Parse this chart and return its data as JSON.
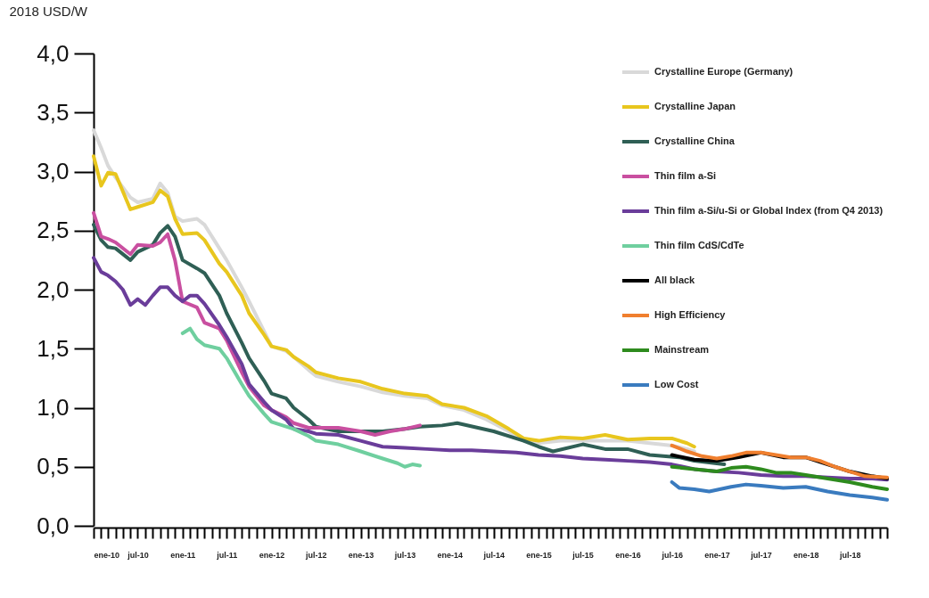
{
  "chart_data": {
    "type": "line",
    "ylabel": "2018 USD/W",
    "legend": "top right",
    "grid": false,
    "marker": "none",
    "line_style": "solid",
    "xlim": [
      "2010-01",
      "2018-12"
    ],
    "ylim": [
      0,
      4
    ],
    "yticks": [
      {
        "value": 0,
        "label": "0,0"
      },
      {
        "value": 0.5,
        "label": "0,5"
      },
      {
        "value": 1,
        "label": "1,0"
      },
      {
        "value": 1.5,
        "label": "1,5"
      },
      {
        "value": 2,
        "label": "2,0"
      },
      {
        "value": 2.5,
        "label": "2,5"
      },
      {
        "value": 3,
        "label": "3,0"
      },
      {
        "value": 3.5,
        "label": "3,5"
      },
      {
        "value": 4,
        "label": "4,0"
      }
    ],
    "xticks": [
      {
        "value": "2010-01",
        "label": "ene-10"
      },
      {
        "value": "2010-02",
        "label": null
      },
      {
        "value": "2010-03",
        "label": null
      },
      {
        "value": "2010-04",
        "label": null
      },
      {
        "value": "2010-05",
        "label": null
      },
      {
        "value": "2010-06",
        "label": null
      },
      {
        "value": "2010-07",
        "label": "jul-10"
      },
      {
        "value": "2010-08",
        "label": null
      },
      {
        "value": "2010-09",
        "label": null
      },
      {
        "value": "2010-10",
        "label": null
      },
      {
        "value": "2010-11",
        "label": null
      },
      {
        "value": "2010-12",
        "label": null
      },
      {
        "value": "2011-01",
        "label": "ene-11"
      },
      {
        "value": "2011-02",
        "label": null
      },
      {
        "value": "2011-03",
        "label": null
      },
      {
        "value": "2011-04",
        "label": null
      },
      {
        "value": "2011-05",
        "label": null
      },
      {
        "value": "2011-06",
        "label": null
      },
      {
        "value": "2011-07",
        "label": "jul-11"
      },
      {
        "value": "2011-08",
        "label": null
      },
      {
        "value": "2011-09",
        "label": null
      },
      {
        "value": "2011-10",
        "label": null
      },
      {
        "value": "2011-11",
        "label": null
      },
      {
        "value": "2011-12",
        "label": null
      },
      {
        "value": "2012-01",
        "label": "ene-12"
      },
      {
        "value": "2012-02",
        "label": null
      },
      {
        "value": "2012-03",
        "label": null
      },
      {
        "value": "2012-04",
        "label": null
      },
      {
        "value": "2012-05",
        "label": null
      },
      {
        "value": "2012-06",
        "label": null
      },
      {
        "value": "2012-07",
        "label": "jul-12"
      },
      {
        "value": "2012-08",
        "label": null
      },
      {
        "value": "2012-09",
        "label": null
      },
      {
        "value": "2012-10",
        "label": null
      },
      {
        "value": "2012-11",
        "label": null
      },
      {
        "value": "2012-12",
        "label": null
      },
      {
        "value": "2013-01",
        "label": "ene-13"
      },
      {
        "value": "2013-02",
        "label": null
      },
      {
        "value": "2013-03",
        "label": null
      },
      {
        "value": "2013-04",
        "label": null
      },
      {
        "value": "2013-05",
        "label": null
      },
      {
        "value": "2013-06",
        "label": null
      },
      {
        "value": "2013-07",
        "label": "jul-13"
      },
      {
        "value": "2013-08",
        "label": null
      },
      {
        "value": "2013-09",
        "label": null
      },
      {
        "value": "2013-10",
        "label": null
      },
      {
        "value": "2013-11",
        "label": null
      },
      {
        "value": "2013-12",
        "label": null
      },
      {
        "value": "2014-01",
        "label": "ene-14"
      },
      {
        "value": "2014-02",
        "label": null
      },
      {
        "value": "2014-03",
        "label": null
      },
      {
        "value": "2014-04",
        "label": null
      },
      {
        "value": "2014-05",
        "label": null
      },
      {
        "value": "2014-06",
        "label": null
      },
      {
        "value": "2014-07",
        "label": "jul-14"
      },
      {
        "value": "2014-08",
        "label": null
      },
      {
        "value": "2014-09",
        "label": null
      },
      {
        "value": "2014-10",
        "label": null
      },
      {
        "value": "2014-11",
        "label": null
      },
      {
        "value": "2014-12",
        "label": null
      },
      {
        "value": "2015-01",
        "label": "ene-15"
      },
      {
        "value": "2015-02",
        "label": null
      },
      {
        "value": "2015-03",
        "label": null
      },
      {
        "value": "2015-04",
        "label": null
      },
      {
        "value": "2015-05",
        "label": null
      },
      {
        "value": "2015-06",
        "label": null
      },
      {
        "value": "2015-07",
        "label": "jul-15"
      },
      {
        "value": "2015-08",
        "label": null
      },
      {
        "value": "2015-09",
        "label": null
      },
      {
        "value": "2015-10",
        "label": null
      },
      {
        "value": "2015-11",
        "label": null
      },
      {
        "value": "2015-12",
        "label": null
      },
      {
        "value": "2016-01",
        "label": "ene-16"
      },
      {
        "value": "2016-02",
        "label": null
      },
      {
        "value": "2016-03",
        "label": null
      },
      {
        "value": "2016-04",
        "label": null
      },
      {
        "value": "2016-05",
        "label": null
      },
      {
        "value": "2016-06",
        "label": null
      },
      {
        "value": "2016-07",
        "label": "jul-16"
      },
      {
        "value": "2016-08",
        "label": null
      },
      {
        "value": "2016-09",
        "label": null
      },
      {
        "value": "2016-10",
        "label": null
      },
      {
        "value": "2016-11",
        "label": null
      },
      {
        "value": "2016-12",
        "label": null
      },
      {
        "value": "2017-01",
        "label": "ene-17"
      },
      {
        "value": "2017-02",
        "label": null
      },
      {
        "value": "2017-03",
        "label": null
      },
      {
        "value": "2017-04",
        "label": null
      },
      {
        "value": "2017-05",
        "label": null
      },
      {
        "value": "2017-06",
        "label": null
      },
      {
        "value": "2017-07",
        "label": "jul-17"
      },
      {
        "value": "2017-08",
        "label": null
      },
      {
        "value": "2017-09",
        "label": null
      },
      {
        "value": "2017-10",
        "label": null
      },
      {
        "value": "2017-11",
        "label": null
      },
      {
        "value": "2017-12",
        "label": null
      },
      {
        "value": "2018-01",
        "label": "ene-18"
      },
      {
        "value": "2018-02",
        "label": null
      },
      {
        "value": "2018-03",
        "label": null
      },
      {
        "value": "2018-04",
        "label": null
      },
      {
        "value": "2018-05",
        "label": null
      },
      {
        "value": "2018-06",
        "label": null
      },
      {
        "value": "2018-07",
        "label": "jul-18"
      },
      {
        "value": "2018-08",
        "label": null
      },
      {
        "value": "2018-09",
        "label": null
      },
      {
        "value": "2018-10",
        "label": null
      },
      {
        "value": "2018-11",
        "label": null
      },
      {
        "value": "2018-12",
        "label": null
      }
    ],
    "series": [
      {
        "name": "Crystalline Europe (Germany)",
        "color": "#d9d9d9",
        "x": [
          "2010-01",
          "2010-02",
          "2010-03",
          "2010-04",
          "2010-06",
          "2010-07",
          "2010-09",
          "2010-10",
          "2010-11",
          "2010-12",
          "2011-01",
          "2011-03",
          "2011-04",
          "2011-06",
          "2011-07",
          "2011-09",
          "2011-10",
          "2011-12",
          "2012-01",
          "2012-03",
          "2012-04",
          "2012-06",
          "2012-07",
          "2012-10",
          "2013-01",
          "2013-04",
          "2013-07",
          "2013-10",
          "2013-12",
          "2014-03",
          "2014-06",
          "2014-09",
          "2014-11",
          "2015-01",
          "2015-04",
          "2015-07",
          "2015-10",
          "2016-01",
          "2016-04",
          "2016-07",
          "2016-09",
          "2016-10"
        ],
        "values": [
          3.35,
          3.2,
          3.05,
          2.95,
          2.78,
          2.74,
          2.77,
          2.9,
          2.82,
          2.62,
          2.58,
          2.6,
          2.55,
          2.35,
          2.25,
          2.02,
          1.9,
          1.65,
          1.52,
          1.48,
          1.43,
          1.32,
          1.27,
          1.22,
          1.18,
          1.13,
          1.1,
          1.08,
          1.02,
          0.98,
          0.9,
          0.8,
          0.72,
          0.7,
          0.72,
          0.72,
          0.72,
          0.72,
          0.7,
          0.68,
          0.65,
          0.63
        ]
      },
      {
        "name": "Crystalline Japan",
        "color": "#e8c61e",
        "x": [
          "2010-01",
          "2010-02",
          "2010-03",
          "2010-04",
          "2010-06",
          "2010-07",
          "2010-09",
          "2010-10",
          "2010-11",
          "2010-12",
          "2011-01",
          "2011-03",
          "2011-04",
          "2011-06",
          "2011-07",
          "2011-09",
          "2011-10",
          "2011-12",
          "2012-01",
          "2012-03",
          "2012-04",
          "2012-06",
          "2012-07",
          "2012-10",
          "2013-01",
          "2013-04",
          "2013-07",
          "2013-10",
          "2013-12",
          "2014-03",
          "2014-06",
          "2014-09",
          "2014-11",
          "2015-01",
          "2015-04",
          "2015-07",
          "2015-10",
          "2016-01",
          "2016-04",
          "2016-07",
          "2016-09",
          "2016-10"
        ],
        "values": [
          3.13,
          2.88,
          2.99,
          2.98,
          2.68,
          2.7,
          2.74,
          2.84,
          2.79,
          2.6,
          2.47,
          2.48,
          2.42,
          2.22,
          2.15,
          1.95,
          1.8,
          1.62,
          1.52,
          1.49,
          1.43,
          1.35,
          1.3,
          1.25,
          1.22,
          1.16,
          1.12,
          1.1,
          1.03,
          1.0,
          0.93,
          0.82,
          0.74,
          0.72,
          0.75,
          0.74,
          0.77,
          0.73,
          0.74,
          0.74,
          0.7,
          0.67
        ]
      },
      {
        "name": "Crystalline China",
        "color": "#2f5f55",
        "x": [
          "2010-01",
          "2010-02",
          "2010-03",
          "2010-04",
          "2010-06",
          "2010-07",
          "2010-09",
          "2010-10",
          "2010-11",
          "2010-12",
          "2011-01",
          "2011-03",
          "2011-04",
          "2011-06",
          "2011-07",
          "2011-09",
          "2011-10",
          "2011-12",
          "2012-01",
          "2012-03",
          "2012-04",
          "2012-06",
          "2012-07",
          "2012-10",
          "2013-01",
          "2013-04",
          "2013-07",
          "2013-09",
          "2013-12",
          "2014-02",
          "2014-07",
          "2014-11",
          "2015-01",
          "2015-03",
          "2015-07",
          "2015-10",
          "2016-01",
          "2016-04",
          "2016-08",
          "2016-10",
          "2017-02"
        ],
        "values": [
          2.55,
          2.42,
          2.36,
          2.35,
          2.25,
          2.32,
          2.38,
          2.48,
          2.54,
          2.45,
          2.25,
          2.18,
          2.14,
          1.95,
          1.8,
          1.55,
          1.42,
          1.23,
          1.12,
          1.08,
          1.0,
          0.9,
          0.84,
          0.8,
          0.8,
          0.8,
          0.82,
          0.84,
          0.85,
          0.87,
          0.8,
          0.72,
          0.67,
          0.63,
          0.69,
          0.65,
          0.65,
          0.6,
          0.58,
          0.55,
          0.52
        ]
      },
      {
        "name": "Thin film a-Si",
        "color": "#c94fa0",
        "x": [
          "2010-01",
          "2010-02",
          "2010-03",
          "2010-04",
          "2010-06",
          "2010-07",
          "2010-09",
          "2010-10",
          "2010-11",
          "2010-12",
          "2011-01",
          "2011-03",
          "2011-04",
          "2011-06",
          "2011-07",
          "2011-09",
          "2011-10",
          "2011-12",
          "2012-01",
          "2012-03",
          "2012-04",
          "2012-06",
          "2012-07",
          "2012-10",
          "2013-01",
          "2013-03",
          "2013-05",
          "2013-07",
          "2013-09"
        ],
        "values": [
          2.65,
          2.45,
          2.43,
          2.4,
          2.3,
          2.38,
          2.37,
          2.4,
          2.47,
          2.25,
          1.9,
          1.85,
          1.72,
          1.67,
          1.57,
          1.3,
          1.18,
          1.02,
          0.98,
          0.92,
          0.87,
          0.83,
          0.83,
          0.83,
          0.8,
          0.77,
          0.8,
          0.82,
          0.85
        ]
      },
      {
        "name": "Thin film a-Si/u-Si or Global Index (from Q4 2013)",
        "color": "#6a3d9a",
        "x": [
          "2010-01",
          "2010-02",
          "2010-03",
          "2010-04",
          "2010-05",
          "2010-06",
          "2010-07",
          "2010-08",
          "2010-09",
          "2010-10",
          "2010-11",
          "2010-12",
          "2011-01",
          "2011-02",
          "2011-03",
          "2011-04",
          "2011-06",
          "2011-07",
          "2011-09",
          "2011-10",
          "2011-12",
          "2012-01",
          "2012-03",
          "2012-04",
          "2012-06",
          "2012-07",
          "2012-10",
          "2013-01",
          "2013-04",
          "2013-07",
          "2013-10",
          "2014-01",
          "2014-04",
          "2014-07",
          "2014-10",
          "2015-01",
          "2015-04",
          "2015-07",
          "2015-10",
          "2016-01",
          "2016-04",
          "2016-07",
          "2016-10",
          "2017-01",
          "2017-04",
          "2017-07",
          "2017-10",
          "2018-01",
          "2018-04",
          "2018-07",
          "2018-10",
          "2018-12"
        ],
        "values": [
          2.27,
          2.15,
          2.12,
          2.07,
          2.0,
          1.87,
          1.92,
          1.87,
          1.95,
          2.02,
          2.02,
          1.95,
          1.9,
          1.95,
          1.95,
          1.88,
          1.7,
          1.6,
          1.37,
          1.2,
          1.05,
          0.98,
          0.9,
          0.82,
          0.8,
          0.78,
          0.77,
          0.72,
          0.67,
          0.66,
          0.65,
          0.64,
          0.64,
          0.63,
          0.62,
          0.6,
          0.59,
          0.57,
          0.56,
          0.55,
          0.54,
          0.52,
          0.48,
          0.46,
          0.45,
          0.43,
          0.42,
          0.42,
          0.41,
          0.4,
          0.4,
          0.39
        ]
      },
      {
        "name": "Thin film CdS/CdTe",
        "color": "#6fcf9f",
        "x": [
          "2011-01",
          "2011-02",
          "2011-03",
          "2011-04",
          "2011-06",
          "2011-07",
          "2011-09",
          "2011-10",
          "2011-12",
          "2012-01",
          "2012-03",
          "2012-04",
          "2012-06",
          "2012-07",
          "2012-10",
          "2013-01",
          "2013-04",
          "2013-06",
          "2013-07",
          "2013-08",
          "2013-09"
        ],
        "values": [
          1.63,
          1.67,
          1.58,
          1.53,
          1.5,
          1.42,
          1.2,
          1.1,
          0.95,
          0.88,
          0.84,
          0.82,
          0.76,
          0.72,
          0.69,
          0.63,
          0.57,
          0.53,
          0.5,
          0.52,
          0.51
        ]
      },
      {
        "name": "All black",
        "color": "#000000",
        "x": [
          "2016-07",
          "2016-10",
          "2017-01",
          "2017-04",
          "2017-07",
          "2017-10",
          "2018-01",
          "2018-04",
          "2018-07",
          "2018-10",
          "2018-12"
        ],
        "values": [
          0.6,
          0.56,
          0.55,
          0.58,
          0.62,
          0.58,
          0.58,
          0.52,
          0.46,
          0.42,
          0.4
        ]
      },
      {
        "name": "High Efficiency",
        "color": "#f07f2e",
        "x": [
          "2016-07",
          "2016-09",
          "2016-11",
          "2017-01",
          "2017-03",
          "2017-05",
          "2017-07",
          "2017-09",
          "2017-11",
          "2018-01",
          "2018-03",
          "2018-05",
          "2018-07",
          "2018-09",
          "2018-12"
        ],
        "values": [
          0.68,
          0.63,
          0.59,
          0.57,
          0.59,
          0.62,
          0.62,
          0.6,
          0.58,
          0.58,
          0.55,
          0.5,
          0.46,
          0.42,
          0.41
        ]
      },
      {
        "name": "Mainstream",
        "color": "#2e8b1e",
        "x": [
          "2016-07",
          "2016-10",
          "2017-01",
          "2017-03",
          "2017-05",
          "2017-07",
          "2017-09",
          "2017-11",
          "2018-01",
          "2018-04",
          "2018-07",
          "2018-10",
          "2018-12"
        ],
        "values": [
          0.5,
          0.48,
          0.46,
          0.49,
          0.5,
          0.48,
          0.45,
          0.45,
          0.43,
          0.4,
          0.37,
          0.33,
          0.31
        ]
      },
      {
        "name": "Low Cost",
        "color": "#3a7bbf",
        "x": [
          "2016-07",
          "2016-08",
          "2016-10",
          "2016-12",
          "2017-03",
          "2017-05",
          "2017-07",
          "2017-10",
          "2018-01",
          "2018-04",
          "2018-07",
          "2018-10",
          "2018-12"
        ],
        "values": [
          0.37,
          0.32,
          0.31,
          0.29,
          0.33,
          0.35,
          0.34,
          0.32,
          0.33,
          0.29,
          0.26,
          0.24,
          0.22
        ]
      }
    ]
  }
}
